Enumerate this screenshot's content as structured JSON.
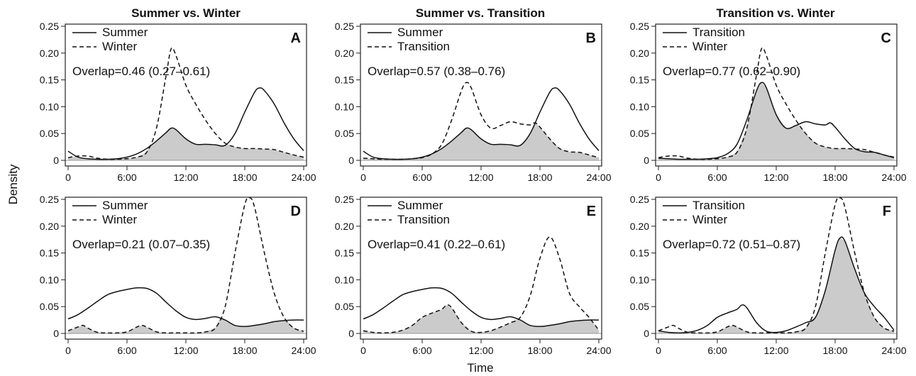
{
  "figure": {
    "column_titles": [
      "Summer vs. Winter",
      "Summer vs. Transition",
      "Transition vs. Winter"
    ],
    "ylabel": "Density",
    "xlabel": "Time"
  },
  "chart_data": [
    {
      "type": "line",
      "panel": "A",
      "x_ticks": [
        "0",
        "6:00",
        "12:00",
        "18:00",
        "24:00"
      ],
      "y_ticks": [
        "0",
        "0.05",
        "0.10",
        "0.15",
        "0.20",
        "0.25"
      ],
      "xlim": [
        0,
        24
      ],
      "ylim": [
        0,
        0.25
      ],
      "overlap_label": "Overlap=0.46 (0.27–0.61)",
      "series": [
        {
          "name": "Summer",
          "style": "solid",
          "x": [
            0,
            1,
            2,
            3,
            4,
            5,
            6,
            7,
            8,
            9,
            10,
            10.5,
            11,
            12,
            13,
            14,
            15,
            16,
            17,
            18,
            19,
            19.5,
            20,
            21,
            22,
            23,
            24
          ],
          "y": [
            0.017,
            0.006,
            0.003,
            0.002,
            0.002,
            0.003,
            0.006,
            0.012,
            0.022,
            0.036,
            0.052,
            0.06,
            0.057,
            0.04,
            0.03,
            0.03,
            0.029,
            0.028,
            0.05,
            0.09,
            0.127,
            0.135,
            0.13,
            0.105,
            0.07,
            0.04,
            0.018
          ]
        },
        {
          "name": "Winter",
          "style": "dashed",
          "x": [
            0,
            1,
            2,
            3,
            4,
            5,
            6,
            7,
            8,
            9,
            10,
            10.5,
            11,
            12,
            13,
            14,
            15,
            16,
            17,
            18,
            19,
            20,
            21,
            22,
            23,
            24
          ],
          "y": [
            0.005,
            0.008,
            0.008,
            0.004,
            0.002,
            0.002,
            0.003,
            0.006,
            0.015,
            0.06,
            0.16,
            0.208,
            0.195,
            0.14,
            0.105,
            0.075,
            0.05,
            0.032,
            0.025,
            0.022,
            0.022,
            0.021,
            0.02,
            0.015,
            0.01,
            0.006
          ]
        }
      ]
    },
    {
      "type": "line",
      "panel": "B",
      "x_ticks": [
        "0",
        "6:00",
        "12:00",
        "18:00",
        "24:00"
      ],
      "y_ticks": [
        "0",
        "0.05",
        "0.10",
        "0.15",
        "0.20",
        "0.25"
      ],
      "xlim": [
        0,
        24
      ],
      "ylim": [
        0,
        0.25
      ],
      "overlap_label": "Overlap=0.57 (0.38–0.76)",
      "series": [
        {
          "name": "Summer",
          "style": "solid",
          "x": [
            0,
            1,
            2,
            3,
            4,
            5,
            6,
            7,
            8,
            9,
            10,
            10.5,
            11,
            12,
            13,
            14,
            15,
            16,
            17,
            18,
            19,
            19.5,
            20,
            21,
            22,
            23,
            24
          ],
          "y": [
            0.017,
            0.006,
            0.003,
            0.002,
            0.002,
            0.003,
            0.006,
            0.012,
            0.022,
            0.036,
            0.052,
            0.06,
            0.057,
            0.04,
            0.03,
            0.03,
            0.029,
            0.028,
            0.05,
            0.09,
            0.127,
            0.135,
            0.13,
            0.105,
            0.07,
            0.04,
            0.018
          ]
        },
        {
          "name": "Transition",
          "style": "dashed",
          "x": [
            0,
            1,
            2,
            3,
            4,
            5,
            6,
            7,
            8,
            9,
            10,
            10.5,
            11,
            12,
            13,
            14,
            15,
            16,
            17,
            17.5,
            18,
            19,
            20,
            21,
            22,
            23,
            24
          ],
          "y": [
            0.004,
            0.003,
            0.002,
            0.002,
            0.002,
            0.003,
            0.005,
            0.012,
            0.03,
            0.075,
            0.13,
            0.145,
            0.135,
            0.085,
            0.06,
            0.065,
            0.072,
            0.068,
            0.066,
            0.07,
            0.062,
            0.04,
            0.022,
            0.016,
            0.015,
            0.01,
            0.005
          ]
        }
      ]
    },
    {
      "type": "line",
      "panel": "C",
      "x_ticks": [
        "0",
        "6:00",
        "12:00",
        "18:00",
        "24:00"
      ],
      "y_ticks": [
        "0",
        "0.05",
        "0.10",
        "0.15",
        "0.20",
        "0.25"
      ],
      "xlim": [
        0,
        24
      ],
      "ylim": [
        0,
        0.25
      ],
      "overlap_label": "Overlap=0.77 (0.62–0.90)",
      "series": [
        {
          "name": "Transition",
          "style": "solid",
          "x": [
            0,
            1,
            2,
            3,
            4,
            5,
            6,
            7,
            8,
            9,
            10,
            10.5,
            11,
            12,
            13,
            14,
            15,
            16,
            17,
            17.5,
            18,
            19,
            20,
            21,
            22,
            23,
            24
          ],
          "y": [
            0.004,
            0.003,
            0.002,
            0.002,
            0.002,
            0.003,
            0.005,
            0.012,
            0.03,
            0.075,
            0.13,
            0.145,
            0.135,
            0.085,
            0.06,
            0.065,
            0.072,
            0.068,
            0.066,
            0.07,
            0.062,
            0.04,
            0.022,
            0.016,
            0.015,
            0.01,
            0.005
          ]
        },
        {
          "name": "Winter",
          "style": "dashed",
          "x": [
            0,
            1,
            2,
            3,
            4,
            5,
            6,
            7,
            8,
            9,
            10,
            10.5,
            11,
            12,
            13,
            14,
            15,
            16,
            17,
            18,
            19,
            20,
            21,
            22,
            23,
            24
          ],
          "y": [
            0.005,
            0.008,
            0.008,
            0.004,
            0.002,
            0.002,
            0.003,
            0.006,
            0.015,
            0.06,
            0.16,
            0.208,
            0.195,
            0.14,
            0.105,
            0.075,
            0.05,
            0.032,
            0.025,
            0.022,
            0.022,
            0.021,
            0.02,
            0.015,
            0.01,
            0.006
          ]
        }
      ]
    },
    {
      "type": "line",
      "panel": "D",
      "x_ticks": [
        "0",
        "6:00",
        "12:00",
        "18:00",
        "24:00"
      ],
      "y_ticks": [
        "0",
        "0.05",
        "0.10",
        "0.15",
        "0.20",
        "0.25"
      ],
      "xlim": [
        0,
        24
      ],
      "ylim": [
        0,
        0.25
      ],
      "overlap_label": "Overlap=0.21 (0.07–0.35)",
      "series": [
        {
          "name": "Summer",
          "style": "solid",
          "x": [
            0,
            1,
            2,
            3,
            4,
            5,
            6,
            7,
            8,
            9,
            10,
            11,
            12,
            13,
            14,
            15,
            16,
            17,
            18,
            19,
            20,
            21,
            22,
            23,
            24
          ],
          "y": [
            0.027,
            0.035,
            0.047,
            0.06,
            0.072,
            0.078,
            0.082,
            0.085,
            0.084,
            0.075,
            0.058,
            0.042,
            0.03,
            0.026,
            0.028,
            0.031,
            0.025,
            0.015,
            0.013,
            0.015,
            0.018,
            0.022,
            0.024,
            0.025,
            0.025
          ]
        },
        {
          "name": "Winter",
          "style": "dashed",
          "x": [
            0,
            1,
            1.5,
            2,
            3,
            4,
            5,
            6,
            7,
            7.5,
            8,
            9,
            10,
            11,
            12,
            13,
            14,
            15,
            16,
            17,
            18,
            18.5,
            19,
            20,
            21,
            22,
            23,
            24
          ],
          "y": [
            0.005,
            0.012,
            0.015,
            0.01,
            0.002,
            0.001,
            0.001,
            0.003,
            0.012,
            0.015,
            0.012,
            0.003,
            0.001,
            0.001,
            0.001,
            0.001,
            0.003,
            0.01,
            0.05,
            0.15,
            0.24,
            0.253,
            0.235,
            0.15,
            0.075,
            0.03,
            0.01,
            0.004
          ]
        }
      ]
    },
    {
      "type": "line",
      "panel": "E",
      "x_ticks": [
        "0",
        "6:00",
        "12:00",
        "18:00",
        "24:00"
      ],
      "y_ticks": [
        "0",
        "0.05",
        "0.10",
        "0.15",
        "0.20",
        "0.25"
      ],
      "xlim": [
        0,
        24
      ],
      "ylim": [
        0,
        0.25
      ],
      "overlap_label": "Overlap=0.41 (0.22–0.61)",
      "series": [
        {
          "name": "Summer",
          "style": "solid",
          "x": [
            0,
            1,
            2,
            3,
            4,
            5,
            6,
            7,
            8,
            9,
            10,
            11,
            12,
            13,
            14,
            15,
            16,
            17,
            18,
            19,
            20,
            21,
            22,
            23,
            24
          ],
          "y": [
            0.027,
            0.035,
            0.047,
            0.06,
            0.072,
            0.078,
            0.082,
            0.085,
            0.084,
            0.075,
            0.058,
            0.042,
            0.03,
            0.026,
            0.028,
            0.031,
            0.025,
            0.015,
            0.013,
            0.015,
            0.018,
            0.022,
            0.024,
            0.025,
            0.025
          ]
        },
        {
          "name": "Transition",
          "style": "dashed",
          "x": [
            0,
            1,
            2,
            3,
            4,
            5,
            6,
            7,
            8,
            8.5,
            9,
            10,
            11,
            12,
            13,
            14,
            15,
            16,
            17,
            18,
            19,
            20,
            21,
            22,
            23,
            24
          ],
          "y": [
            0.005,
            0.002,
            0.001,
            0.002,
            0.006,
            0.015,
            0.03,
            0.038,
            0.045,
            0.053,
            0.048,
            0.02,
            0.004,
            0.002,
            0.005,
            0.012,
            0.02,
            0.03,
            0.07,
            0.14,
            0.18,
            0.14,
            0.075,
            0.05,
            0.03,
            0.006
          ]
        }
      ]
    },
    {
      "type": "line",
      "panel": "F",
      "x_ticks": [
        "0",
        "6:00",
        "12:00",
        "18:00",
        "24:00"
      ],
      "y_ticks": [
        "0",
        "0.05",
        "0.10",
        "0.15",
        "0.20",
        "0.25"
      ],
      "xlim": [
        0,
        24
      ],
      "ylim": [
        0,
        0.25
      ],
      "overlap_label": "Overlap=0.72 (0.51–0.87)",
      "series": [
        {
          "name": "Transition",
          "style": "solid",
          "x": [
            0,
            1,
            2,
            3,
            4,
            5,
            6,
            7,
            8,
            8.5,
            9,
            10,
            11,
            12,
            13,
            14,
            15,
            16,
            17,
            18,
            18.5,
            19,
            20,
            21,
            22,
            23,
            24
          ],
          "y": [
            0.005,
            0.002,
            0.001,
            0.002,
            0.006,
            0.015,
            0.03,
            0.038,
            0.045,
            0.053,
            0.048,
            0.02,
            0.004,
            0.002,
            0.005,
            0.012,
            0.02,
            0.03,
            0.08,
            0.155,
            0.178,
            0.172,
            0.12,
            0.075,
            0.05,
            0.03,
            0.006
          ]
        },
        {
          "name": "Winter",
          "style": "dashed",
          "x": [
            0,
            1,
            1.5,
            2,
            3,
            4,
            5,
            6,
            7,
            7.5,
            8,
            9,
            10,
            11,
            12,
            13,
            14,
            15,
            16,
            17,
            18,
            18.5,
            19,
            20,
            21,
            22,
            23,
            24
          ],
          "y": [
            0.005,
            0.012,
            0.015,
            0.01,
            0.002,
            0.001,
            0.001,
            0.003,
            0.012,
            0.015,
            0.012,
            0.003,
            0.001,
            0.001,
            0.001,
            0.001,
            0.003,
            0.01,
            0.05,
            0.15,
            0.24,
            0.253,
            0.235,
            0.15,
            0.075,
            0.03,
            0.01,
            0.004
          ]
        }
      ]
    }
  ]
}
